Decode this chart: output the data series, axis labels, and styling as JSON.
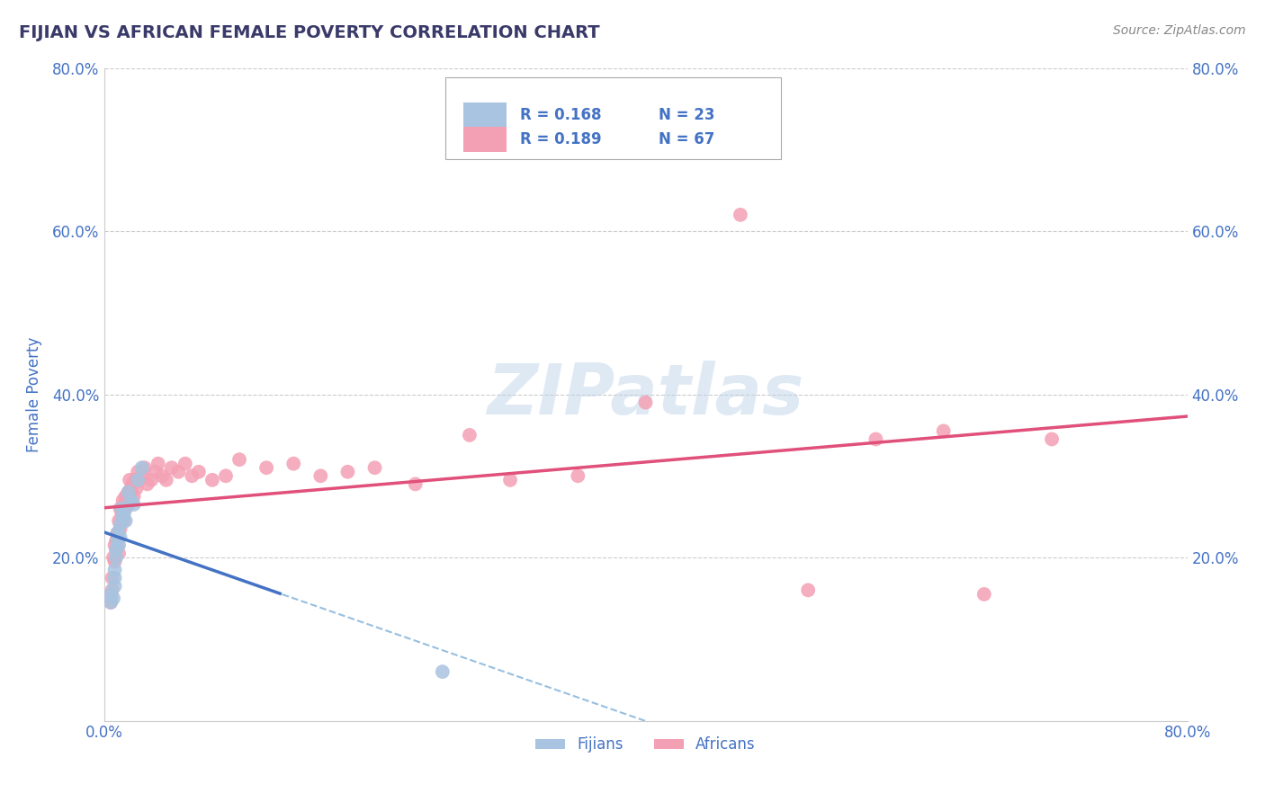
{
  "title": "FIJIAN VS AFRICAN FEMALE POVERTY CORRELATION CHART",
  "source": "Source: ZipAtlas.com",
  "ylabel": "Female Poverty",
  "fijian_R": 0.168,
  "fijian_N": 23,
  "african_R": 0.189,
  "african_N": 67,
  "fijian_color": "#a8c4e0",
  "african_color": "#f4a0b4",
  "fijian_line_color": "#4472c4",
  "african_line_color": "#e0507a",
  "dashed_line_color": "#7fafd8",
  "title_color": "#3a3a6a",
  "axis_label_color": "#4472c4",
  "source_color": "#888888",
  "legend_R_color": "#4472c4",
  "legend_N_color": "#4472c4",
  "xlim": [
    0.0,
    0.8
  ],
  "ylim": [
    0.0,
    0.8
  ],
  "watermark": "ZIPatlas",
  "background_color": "#ffffff",
  "grid_color": "#cccccc",
  "fijian_x": [
    0.005,
    0.005,
    0.007,
    0.008,
    0.008,
    0.008,
    0.009,
    0.009,
    0.01,
    0.01,
    0.011,
    0.012,
    0.012,
    0.013,
    0.014,
    0.015,
    0.016,
    0.018,
    0.02,
    0.022,
    0.025,
    0.028,
    0.25
  ],
  "fijian_y": [
    0.155,
    0.145,
    0.15,
    0.165,
    0.175,
    0.185,
    0.2,
    0.21,
    0.22,
    0.23,
    0.215,
    0.225,
    0.24,
    0.26,
    0.25,
    0.255,
    0.245,
    0.28,
    0.27,
    0.265,
    0.295,
    0.31,
    0.06
  ],
  "african_x": [
    0.005,
    0.005,
    0.006,
    0.006,
    0.007,
    0.008,
    0.008,
    0.009,
    0.009,
    0.01,
    0.01,
    0.01,
    0.011,
    0.011,
    0.012,
    0.012,
    0.013,
    0.013,
    0.014,
    0.014,
    0.015,
    0.015,
    0.016,
    0.016,
    0.018,
    0.018,
    0.019,
    0.02,
    0.02,
    0.021,
    0.022,
    0.023,
    0.024,
    0.025,
    0.026,
    0.028,
    0.03,
    0.032,
    0.035,
    0.038,
    0.04,
    0.043,
    0.046,
    0.05,
    0.055,
    0.06,
    0.065,
    0.07,
    0.08,
    0.09,
    0.1,
    0.12,
    0.14,
    0.16,
    0.18,
    0.2,
    0.23,
    0.27,
    0.3,
    0.35,
    0.4,
    0.47,
    0.52,
    0.57,
    0.62,
    0.65,
    0.7
  ],
  "african_y": [
    0.15,
    0.145,
    0.175,
    0.16,
    0.2,
    0.215,
    0.195,
    0.22,
    0.21,
    0.23,
    0.215,
    0.225,
    0.245,
    0.205,
    0.26,
    0.235,
    0.255,
    0.245,
    0.27,
    0.25,
    0.265,
    0.245,
    0.275,
    0.26,
    0.28,
    0.265,
    0.295,
    0.285,
    0.27,
    0.29,
    0.275,
    0.295,
    0.285,
    0.305,
    0.295,
    0.3,
    0.31,
    0.29,
    0.295,
    0.305,
    0.315,
    0.3,
    0.295,
    0.31,
    0.305,
    0.315,
    0.3,
    0.305,
    0.295,
    0.3,
    0.32,
    0.31,
    0.315,
    0.3,
    0.305,
    0.31,
    0.29,
    0.35,
    0.295,
    0.3,
    0.39,
    0.62,
    0.16,
    0.345,
    0.355,
    0.155,
    0.345
  ]
}
